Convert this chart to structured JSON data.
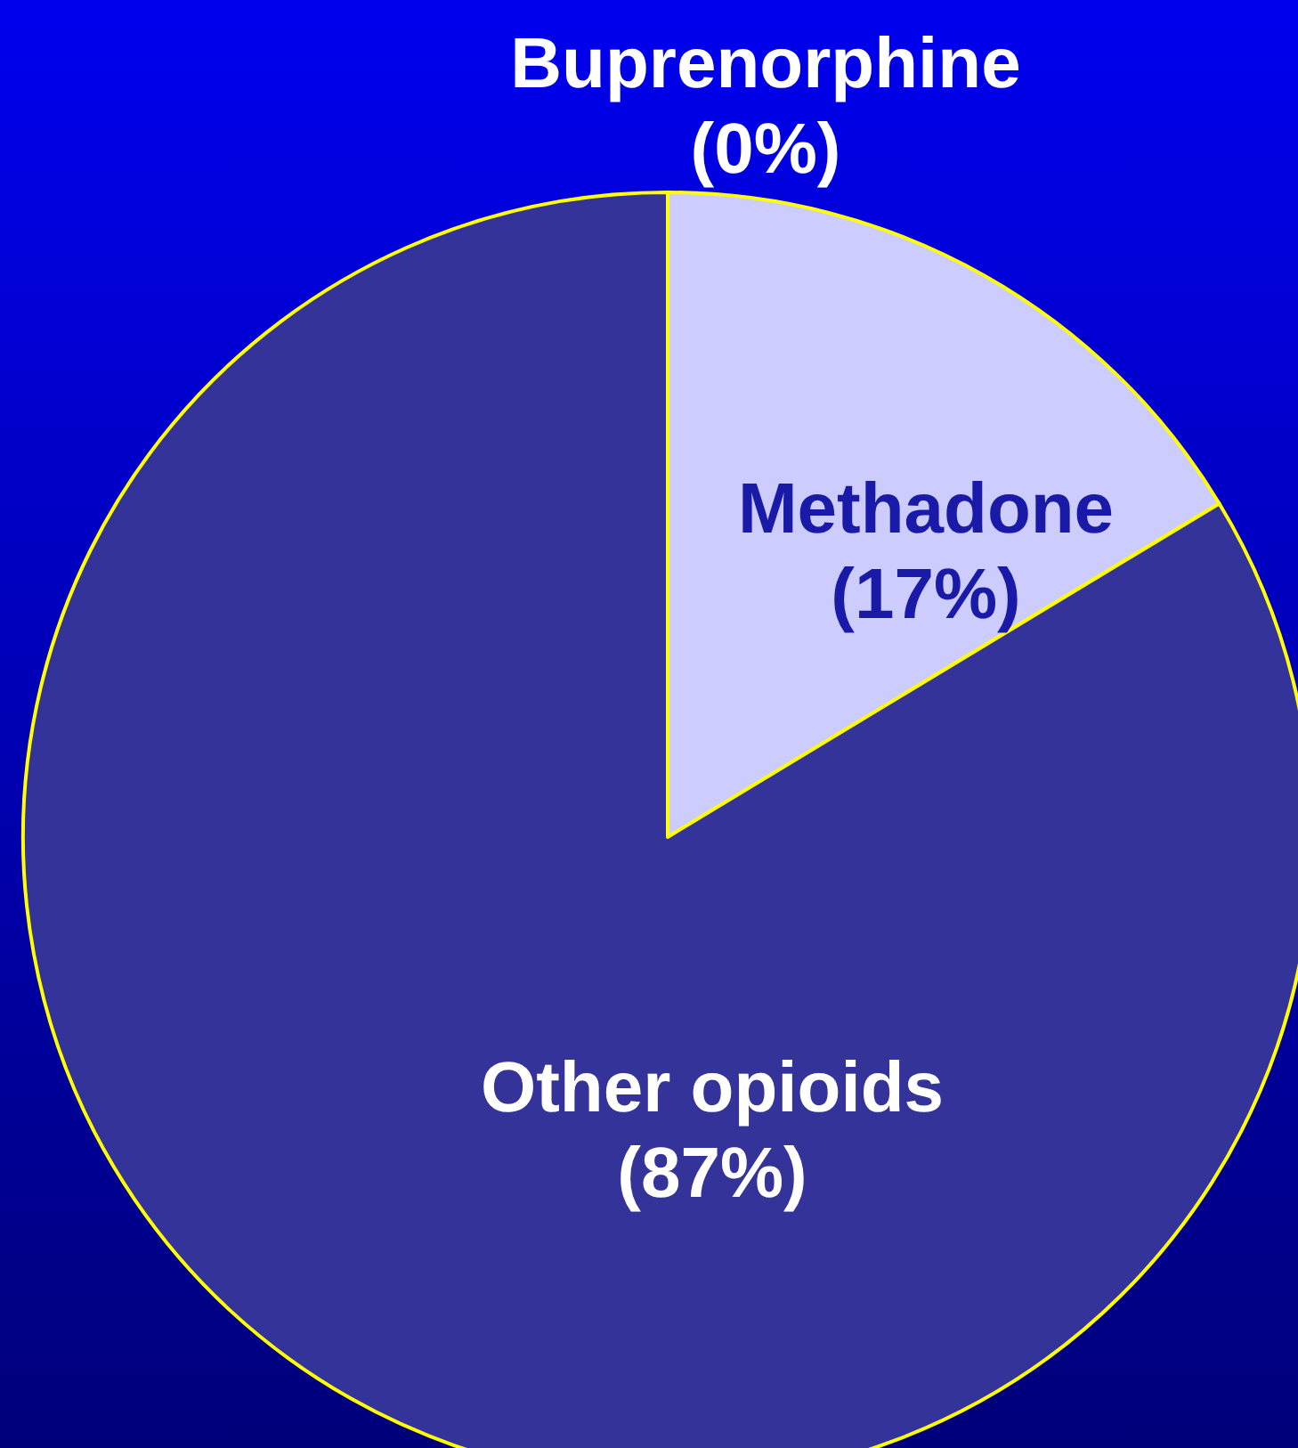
{
  "chart_data": {
    "type": "pie",
    "categories": [
      "Buprenorphine",
      "Methadone",
      "Other opioids"
    ],
    "values": [
      0,
      17,
      87
    ],
    "value_labels": [
      "(0%)",
      "(17%)",
      "(87%)"
    ],
    "colors": [
      "#ffff00",
      "#ccccff",
      "#333399"
    ],
    "legend": false
  }
}
